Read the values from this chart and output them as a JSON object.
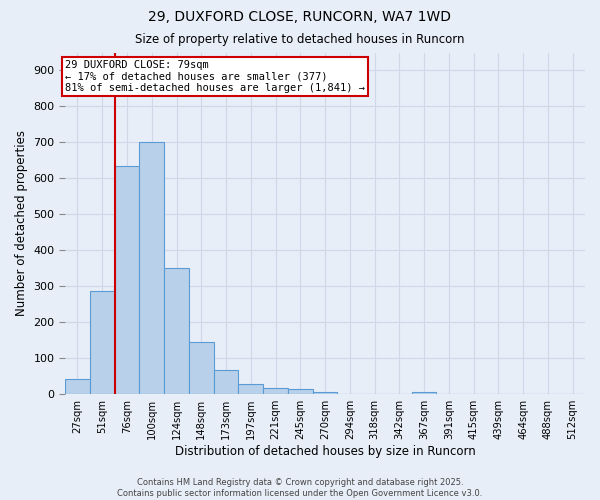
{
  "title_line1": "29, DUXFORD CLOSE, RUNCORN, WA7 1WD",
  "title_line2": "Size of property relative to detached houses in Runcorn",
  "xlabel": "Distribution of detached houses by size in Runcorn",
  "ylabel": "Number of detached properties",
  "bar_labels": [
    "27sqm",
    "51sqm",
    "76sqm",
    "100sqm",
    "124sqm",
    "148sqm",
    "173sqm",
    "197sqm",
    "221sqm",
    "245sqm",
    "270sqm",
    "294sqm",
    "318sqm",
    "342sqm",
    "367sqm",
    "391sqm",
    "415sqm",
    "439sqm",
    "464sqm",
    "488sqm",
    "512sqm"
  ],
  "bar_values": [
    40,
    285,
    635,
    700,
    350,
    143,
    65,
    28,
    15,
    12,
    5,
    0,
    0,
    0,
    6,
    0,
    0,
    0,
    0,
    0,
    0
  ],
  "bar_color": "#b8d0ea",
  "bar_edge_color": "#5b9bd5",
  "vline_color": "#cc0000",
  "vline_pos": 1.5,
  "annotation_text": "29 DUXFORD CLOSE: 79sqm\n← 17% of detached houses are smaller (377)\n81% of semi-detached houses are larger (1,841) →",
  "annotation_box_color": "#cc0000",
  "ylim": [
    0,
    950
  ],
  "yticks": [
    0,
    100,
    200,
    300,
    400,
    500,
    600,
    700,
    800,
    900
  ],
  "grid_color": "#d0d8e8",
  "bg_color": "#e8eef8",
  "footnote": "Contains HM Land Registry data © Crown copyright and database right 2025.\nContains public sector information licensed under the Open Government Licence v3.0."
}
